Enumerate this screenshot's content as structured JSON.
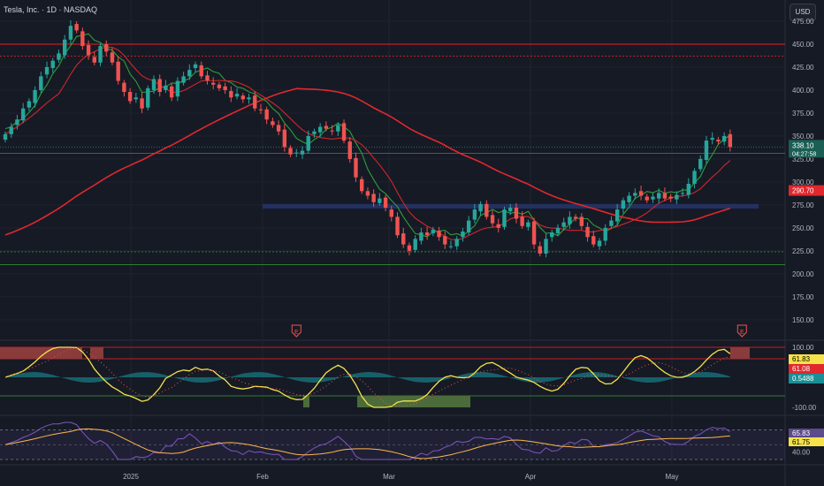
{
  "header": {
    "title": "Tesla, Inc. · 1D · NASDAQ"
  },
  "currency_button": "USD",
  "price_panel": {
    "price_labels": [
      "475.00",
      "450.00",
      "425.00",
      "400.00",
      "375.00",
      "350.00",
      "325.00",
      "300.00",
      "275.00",
      "250.00",
      "225.00",
      "200.00",
      "175.00",
      "150.00"
    ],
    "last_price_label": "338.10",
    "countdown_label": "04:27:58",
    "ma_value_label": "290.70",
    "earnings_marker": "E"
  },
  "oscillator_panel": {
    "scale_labels": [
      "100.00",
      "-100.00"
    ],
    "value_labels": [
      "61.83",
      "61.08",
      "0.5488"
    ]
  },
  "rsi_panel": {
    "scale_labels": [
      "40.00"
    ],
    "value_labels": [
      "65.83",
      "61.75"
    ]
  },
  "time_axis_labels": [
    "2025",
    "Feb",
    "Mar",
    "Apr",
    "May"
  ],
  "colors": {
    "background": "#161a25",
    "up": "#26a69a",
    "down": "#ef5350",
    "ma": "#e0282e",
    "band_green": "#2e9e3a",
    "band_red": "#d1262b",
    "resistance": "#c41e24",
    "support": "#2e7d32",
    "zone": "#27356b",
    "signal_yellow": "#f5e24b",
    "rsi_purple": "#7e57c2",
    "rsi_orange": "#ffb74d"
  },
  "chart_data": [
    {
      "type": "candlestick",
      "title": "Tesla, Inc. · 1D · NASDAQ",
      "ylim": [
        130,
        482
      ],
      "x_labels": [
        "2025",
        "Feb",
        "Mar",
        "Apr",
        "May"
      ],
      "last_price": 338.1,
      "moving_average_last": 290.7,
      "closes": [
        352,
        360,
        368,
        380,
        388,
        400,
        415,
        425,
        432,
        440,
        455,
        470,
        465,
        448,
        438,
        430,
        448,
        442,
        430,
        410,
        398,
        388,
        392,
        380,
        402,
        412,
        398,
        405,
        392,
        410,
        415,
        422,
        428,
        415,
        410,
        406,
        402,
        400,
        392,
        396,
        390,
        392,
        380,
        378,
        368,
        362,
        355,
        338,
        330,
        332,
        334,
        350,
        355,
        360,
        358,
        355,
        362,
        345,
        325,
        305,
        290,
        285,
        278,
        282,
        272,
        262,
        242,
        232,
        225,
        238,
        245,
        242,
        248,
        240,
        232,
        230,
        238,
        246,
        258,
        270,
        276,
        262,
        255,
        250,
        270,
        272,
        260,
        252,
        256,
        232,
        222,
        238,
        245,
        250,
        256,
        262,
        260,
        252,
        240,
        232,
        236,
        250,
        258,
        270,
        280,
        285,
        288,
        285,
        280,
        284,
        288,
        282,
        282,
        286,
        288,
        298,
        312,
        325,
        345,
        348,
        344,
        350,
        338
      ],
      "horizontal_levels": {
        "resistance": [
          450,
          437
        ],
        "support": [
          224,
          210
        ]
      },
      "zone": [
        271,
        276
      ],
      "earnings_markers_x_index": [
        49,
        124
      ]
    },
    {
      "type": "line",
      "name": "oscillator",
      "ylim": [
        -100,
        100
      ],
      "last_values": [
        61.83,
        61.08,
        0.5488
      ]
    },
    {
      "type": "line",
      "name": "rsi",
      "ylim": [
        30,
        80
      ],
      "last_values": [
        65.83,
        61.75
      ]
    }
  ]
}
